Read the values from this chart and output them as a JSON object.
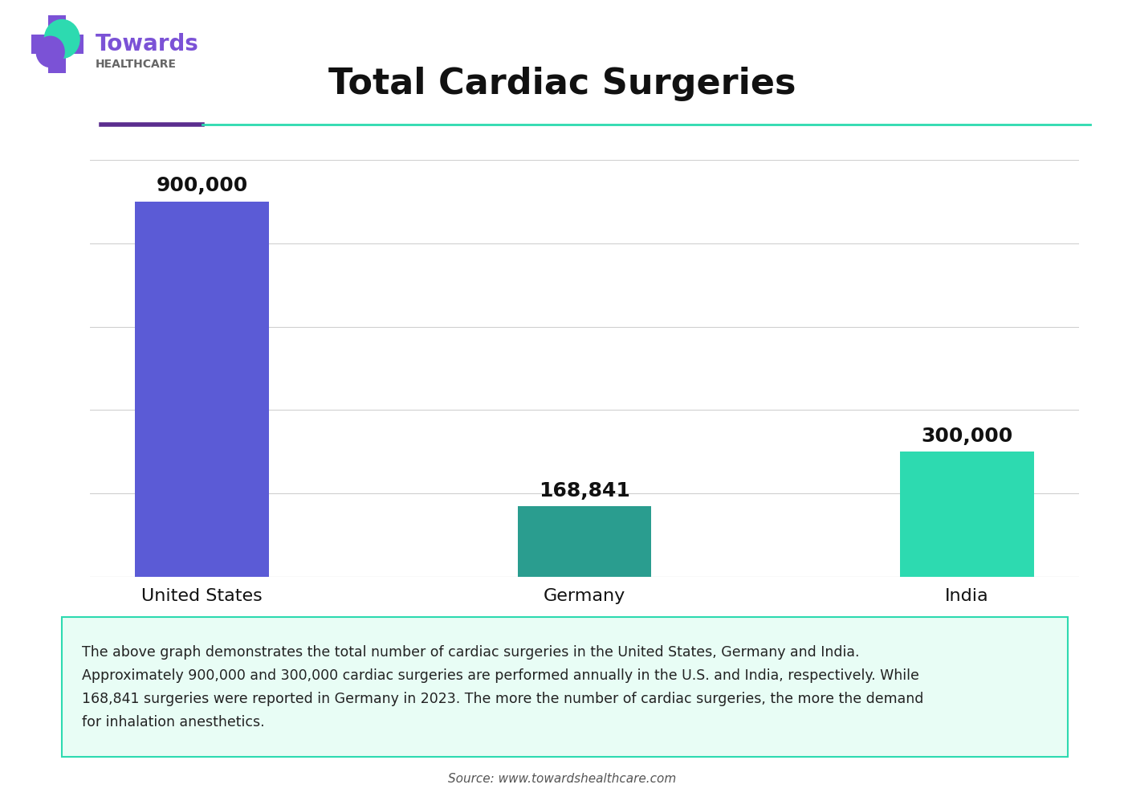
{
  "title": "Total Cardiac Surgeries",
  "categories": [
    "United States",
    "Germany",
    "India"
  ],
  "values": [
    900000,
    168841,
    300000
  ],
  "bar_colors": [
    "#5B5BD6",
    "#2A9D8F",
    "#2DDAB0"
  ],
  "value_labels": [
    "900,000",
    "168,841",
    "300,000"
  ],
  "background_color": "#ffffff",
  "grid_color": "#d0d0d0",
  "annotation_text": "The above graph demonstrates the total number of cardiac surgeries in the United States, Germany and India.\nApproximately 900,000 and 300,000 cardiac surgeries are performed annually in the U.S. and India, respectively. While\n168,841 surgeries were reported in Germany in 2023. The more the number of cardiac surgeries, the more the demand\nfor inhalation anesthetics.",
  "annotation_bg": "#e8fdf5",
  "annotation_border": "#2DDAB0",
  "source_text": "Source: www.towardshealthcare.com",
  "logo_text_towards": "Towards",
  "logo_text_healthcare": "HEALTHCARE",
  "header_line_purple": "#5B2D8E",
  "header_line_teal": "#2DDAB0",
  "ylim": [
    0,
    1000000
  ],
  "bar_width": 0.35,
  "cross_color": "#7B52D6",
  "teal_color": "#2DDAB0"
}
